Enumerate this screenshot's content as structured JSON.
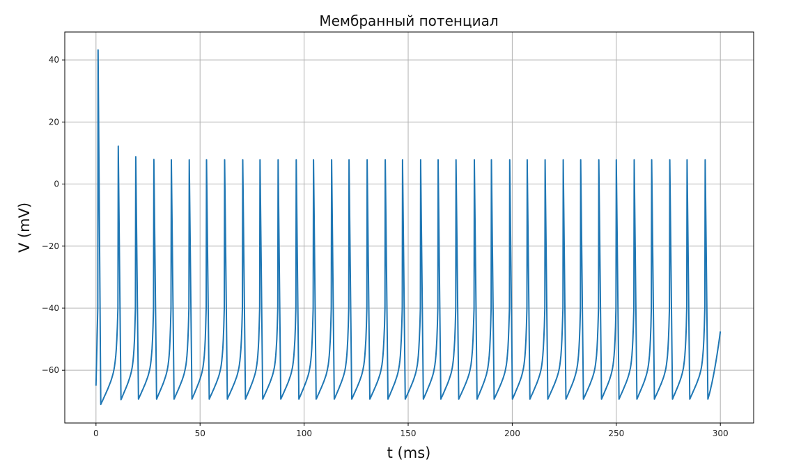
{
  "chart_data": {
    "type": "line",
    "title": "Мембранный потенциал",
    "xlabel": "t (ms)",
    "ylabel": "V (mV)",
    "xlim": [
      -15,
      316
    ],
    "ylim": [
      -77,
      49
    ],
    "xticks": [
      0,
      50,
      100,
      150,
      200,
      250,
      300
    ],
    "xtick_labels": [
      "0",
      "50",
      "100",
      "150",
      "200",
      "250",
      "300"
    ],
    "yticks": [
      40,
      20,
      0,
      -20,
      -40,
      -60
    ],
    "ytick_labels": [
      "40",
      "20",
      "0",
      "−20",
      "−40",
      "−60"
    ],
    "grid": true,
    "color": "#1f77b4",
    "series": [
      {
        "start": {
          "t": 0,
          "v": -65
        },
        "end": {
          "t": 300,
          "v": -47.5
        },
        "spike_times": [
          1.0,
          10.7,
          19.1,
          27.8,
          36.2,
          44.8,
          53.1,
          61.8,
          70.5,
          78.8,
          87.5,
          96.2,
          104.5,
          113.2,
          121.6,
          130.3,
          139.0,
          147.3,
          156.0,
          164.4,
          173.0,
          181.8,
          190.0,
          198.8,
          207.2,
          215.8,
          224.5,
          232.9,
          241.6,
          250.0,
          258.6,
          267.0,
          275.7,
          284.0,
          292.7
        ],
        "spike_peaks": [
          43.2,
          12.2,
          8.8,
          7.9,
          7.8,
          7.8,
          7.8,
          7.8,
          7.8,
          7.8,
          7.8,
          7.8,
          7.8,
          7.8,
          7.8,
          7.8,
          7.8,
          7.8,
          7.8,
          7.8,
          7.8,
          7.8,
          7.8,
          7.8,
          7.8,
          7.8,
          7.8,
          7.8,
          7.8,
          7.8,
          7.8,
          7.8,
          7.8,
          7.8,
          7.8
        ],
        "trough_values": [
          -71.0,
          -69.5,
          -69.3,
          -69.3,
          -69.3,
          -69.3,
          -69.3,
          -69.3,
          -69.3,
          -69.3,
          -69.3,
          -69.3,
          -69.3,
          -69.3,
          -69.3,
          -69.3,
          -69.3,
          -69.3,
          -69.3,
          -69.3,
          -69.3,
          -69.3,
          -69.3,
          -69.3,
          -69.3,
          -69.3,
          -69.3,
          -69.3,
          -69.3,
          -69.3,
          -69.3,
          -69.3,
          -69.3,
          -69.3,
          -69.3
        ]
      }
    ]
  }
}
